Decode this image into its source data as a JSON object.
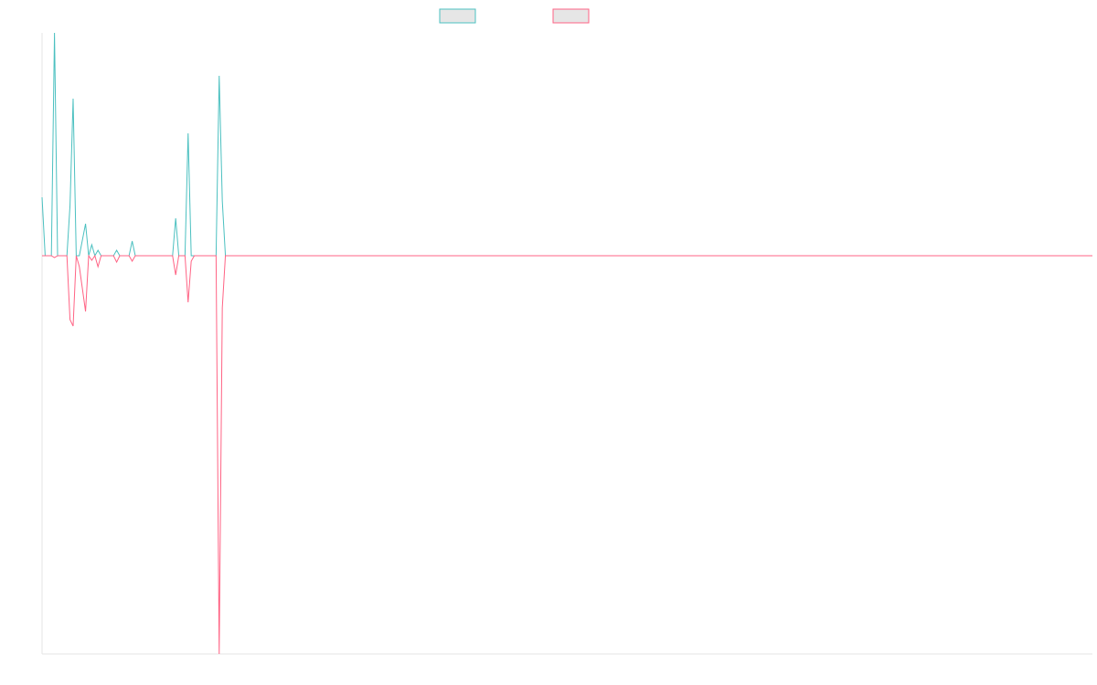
{
  "chart_data": {
    "type": "line",
    "x": [
      0,
      1,
      3,
      4,
      5,
      8,
      9,
      10,
      11,
      12,
      14,
      15,
      16,
      17,
      18,
      19,
      23,
      24,
      25,
      28,
      29,
      30,
      42,
      43,
      44,
      46,
      47,
      48,
      49,
      56,
      57,
      58,
      59,
      208,
      338
    ],
    "xlim": [
      0,
      338
    ],
    "ylim": [
      -436,
      244
    ],
    "series": [
      {
        "color": "#4bc0c0",
        "values": [
          64,
          0,
          0,
          244,
          0,
          0,
          55,
          172,
          0,
          0,
          35,
          0,
          12,
          0,
          6,
          0,
          0,
          6,
          0,
          0,
          16,
          0,
          0,
          41,
          0,
          0,
          134,
          0,
          0,
          0,
          197,
          60,
          0,
          0,
          0
        ]
      },
      {
        "color": "#ff6384",
        "values": [
          0,
          0,
          0,
          -2,
          0,
          0,
          -70,
          -77,
          0,
          -12,
          -61,
          0,
          -5,
          0,
          -12,
          0,
          0,
          -7,
          0,
          0,
          -6,
          0,
          0,
          -21,
          0,
          0,
          -51,
          -6,
          0,
          0,
          -436,
          -57,
          0,
          0,
          0
        ]
      }
    ]
  }
}
